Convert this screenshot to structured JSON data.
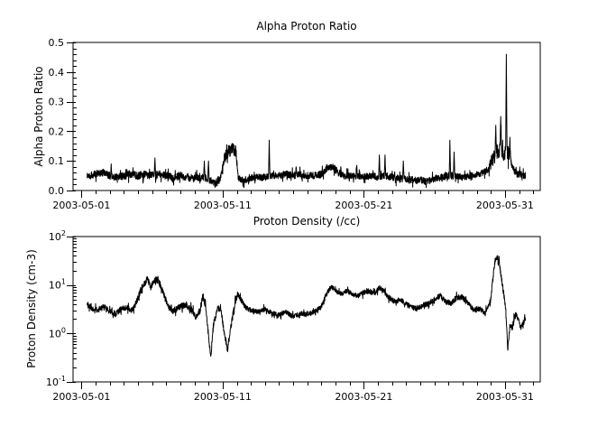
{
  "figure": {
    "background": "#ffffff",
    "line_color": "#000000",
    "text_color": "#000000"
  },
  "chart_data": [
    {
      "type": "line",
      "title": "Alpha Proton Ratio",
      "xlabel": "",
      "ylabel": "Alpha Proton Ratio",
      "scale": "linear",
      "ylim": [
        0.0,
        0.5
      ],
      "xlim_days": [
        -0.6,
        32.5
      ],
      "x_epoch": "2003-05-01",
      "grid": false,
      "x_ticks": [
        {
          "day": 0,
          "label": "2003-05-01"
        },
        {
          "day": 10,
          "label": "2003-05-11"
        },
        {
          "day": 20,
          "label": "2003-05-21"
        },
        {
          "day": 30,
          "label": "2003-05-31"
        }
      ],
      "x_minor_step_days": 1,
      "y_ticks": [
        {
          "v": 0.0,
          "label": "0.0"
        },
        {
          "v": 0.1,
          "label": "0.1"
        },
        {
          "v": 0.2,
          "label": "0.2"
        },
        {
          "v": 0.3,
          "label": "0.3"
        },
        {
          "v": 0.4,
          "label": "0.4"
        },
        {
          "v": 0.5,
          "label": "0.5"
        }
      ],
      "y_minor_step": 0.02,
      "data_day_range": [
        0.4,
        31.45
      ],
      "series_anchors": [
        [
          0.4,
          0.05
        ],
        [
          1.0,
          0.055
        ],
        [
          1.5,
          0.06
        ],
        [
          2.0,
          0.05
        ],
        [
          2.5,
          0.045
        ],
        [
          3.0,
          0.05
        ],
        [
          3.5,
          0.055
        ],
        [
          4.0,
          0.05
        ],
        [
          4.5,
          0.055
        ],
        [
          5.0,
          0.05
        ],
        [
          5.5,
          0.055
        ],
        [
          6.0,
          0.05
        ],
        [
          6.5,
          0.045
        ],
        [
          7.0,
          0.05
        ],
        [
          7.5,
          0.045
        ],
        [
          8.0,
          0.04
        ],
        [
          8.5,
          0.045
        ],
        [
          9.0,
          0.04
        ],
        [
          9.3,
          0.03
        ],
        [
          9.6,
          0.03
        ],
        [
          9.9,
          0.05
        ],
        [
          10.1,
          0.11
        ],
        [
          10.4,
          0.13
        ],
        [
          10.7,
          0.14
        ],
        [
          10.95,
          0.13
        ],
        [
          11.1,
          0.04
        ],
        [
          11.5,
          0.035
        ],
        [
          12.0,
          0.04
        ],
        [
          12.5,
          0.045
        ],
        [
          13.0,
          0.045
        ],
        [
          13.5,
          0.05
        ],
        [
          14.0,
          0.05
        ],
        [
          14.5,
          0.055
        ],
        [
          15.0,
          0.05
        ],
        [
          15.5,
          0.055
        ],
        [
          16.0,
          0.05
        ],
        [
          16.5,
          0.05
        ],
        [
          17.0,
          0.055
        ],
        [
          17.4,
          0.075
        ],
        [
          17.8,
          0.08
        ],
        [
          18.2,
          0.06
        ],
        [
          18.6,
          0.05
        ],
        [
          19.0,
          0.05
        ],
        [
          19.5,
          0.05
        ],
        [
          20.0,
          0.045
        ],
        [
          20.5,
          0.05
        ],
        [
          21.0,
          0.045
        ],
        [
          21.5,
          0.05
        ],
        [
          22.0,
          0.045
        ],
        [
          22.5,
          0.04
        ],
        [
          23.0,
          0.04
        ],
        [
          23.5,
          0.035
        ],
        [
          24.0,
          0.035
        ],
        [
          24.5,
          0.03
        ],
        [
          25.0,
          0.04
        ],
        [
          25.5,
          0.045
        ],
        [
          26.0,
          0.05
        ],
        [
          26.5,
          0.05
        ],
        [
          27.0,
          0.045
        ],
        [
          27.5,
          0.05
        ],
        [
          28.0,
          0.055
        ],
        [
          28.4,
          0.06
        ],
        [
          28.8,
          0.07
        ],
        [
          29.1,
          0.1
        ],
        [
          29.4,
          0.13
        ],
        [
          29.7,
          0.14
        ],
        [
          30.0,
          0.12
        ],
        [
          30.2,
          0.13
        ],
        [
          30.45,
          0.09
        ],
        [
          30.6,
          0.07
        ],
        [
          30.9,
          0.055
        ],
        [
          31.45,
          0.05
        ]
      ],
      "spikes": [
        [
          2.1,
          0.09
        ],
        [
          5.2,
          0.11
        ],
        [
          8.7,
          0.1
        ],
        [
          9.0,
          0.1
        ],
        [
          13.3,
          0.17
        ],
        [
          15.2,
          0.08
        ],
        [
          19.5,
          0.085
        ],
        [
          21.1,
          0.12
        ],
        [
          21.5,
          0.12
        ],
        [
          22.8,
          0.1
        ],
        [
          26.1,
          0.17
        ],
        [
          26.4,
          0.13
        ],
        [
          29.35,
          0.22
        ],
        [
          29.7,
          0.25
        ],
        [
          30.1,
          0.46
        ],
        [
          30.35,
          0.18
        ]
      ],
      "noise_anchors": [
        [
          0,
          0.013
        ],
        [
          9.9,
          0.013
        ],
        [
          10.2,
          0.02
        ],
        [
          11.0,
          0.02
        ],
        [
          11.2,
          0.012
        ],
        [
          28.8,
          0.012
        ],
        [
          29.0,
          0.025
        ],
        [
          30.3,
          0.025
        ],
        [
          30.5,
          0.012
        ],
        [
          32,
          0.012
        ]
      ],
      "clamp": [
        0.01,
        0.5
      ]
    },
    {
      "type": "line",
      "title": "Proton Density (/cc)",
      "xlabel": "",
      "ylabel": "Proton Density (cm-3)",
      "scale": "log",
      "ylim": [
        0.1,
        100
      ],
      "xlim_days": [
        -0.6,
        32.5
      ],
      "x_epoch": "2003-05-01",
      "grid": false,
      "x_ticks": [
        {
          "day": 0,
          "label": "2003-05-01"
        },
        {
          "day": 10,
          "label": "2003-05-11"
        },
        {
          "day": 20,
          "label": "2003-05-21"
        },
        {
          "day": 30,
          "label": "2003-05-31"
        }
      ],
      "x_minor_step_days": 1,
      "y_ticks": [
        {
          "v": 0.1,
          "mantissa": "10",
          "exp": "-1"
        },
        {
          "v": 1,
          "mantissa": "10",
          "exp": "0"
        },
        {
          "v": 10,
          "mantissa": "10",
          "exp": "1"
        },
        {
          "v": 100,
          "mantissa": "10",
          "exp": "2"
        }
      ],
      "data_day_range": [
        0.4,
        31.45
      ],
      "series_anchors": [
        [
          0.4,
          4.0
        ],
        [
          0.8,
          3.2
        ],
        [
          1.2,
          3.0
        ],
        [
          1.6,
          3.6
        ],
        [
          2.0,
          3.0
        ],
        [
          2.4,
          2.5
        ],
        [
          2.8,
          3.2
        ],
        [
          3.2,
          3.5
        ],
        [
          3.6,
          3.0
        ],
        [
          3.9,
          4.5
        ],
        [
          4.2,
          8.0
        ],
        [
          4.5,
          11.0
        ],
        [
          4.65,
          14.0
        ],
        [
          4.9,
          9.0
        ],
        [
          5.1,
          12.0
        ],
        [
          5.3,
          13.0
        ],
        [
          5.6,
          10.0
        ],
        [
          5.9,
          5.5
        ],
        [
          6.2,
          3.5
        ],
        [
          6.6,
          3.0
        ],
        [
          7.0,
          3.5
        ],
        [
          7.4,
          4.0
        ],
        [
          7.8,
          3.0
        ],
        [
          8.1,
          2.2
        ],
        [
          8.4,
          3.0
        ],
        [
          8.6,
          6.0
        ],
        [
          8.8,
          3.5
        ],
        [
          9.0,
          0.9
        ],
        [
          9.15,
          0.33
        ],
        [
          9.35,
          1.5
        ],
        [
          9.6,
          3.0
        ],
        [
          9.85,
          3.5
        ],
        [
          10.1,
          1.1
        ],
        [
          10.35,
          0.45
        ],
        [
          10.6,
          1.5
        ],
        [
          10.85,
          4.0
        ],
        [
          11.05,
          6.5
        ],
        [
          11.3,
          5.0
        ],
        [
          11.6,
          3.5
        ],
        [
          12.0,
          3.0
        ],
        [
          12.5,
          2.8
        ],
        [
          13.0,
          3.2
        ],
        [
          13.5,
          2.6
        ],
        [
          14.0,
          2.4
        ],
        [
          14.5,
          2.8
        ],
        [
          15.0,
          2.2
        ],
        [
          15.5,
          2.6
        ],
        [
          16.0,
          2.5
        ],
        [
          16.5,
          2.8
        ],
        [
          17.0,
          3.5
        ],
        [
          17.3,
          6.0
        ],
        [
          17.7,
          9.5
        ],
        [
          18.0,
          7.5
        ],
        [
          18.4,
          6.5
        ],
        [
          18.8,
          7.5
        ],
        [
          19.2,
          6.5
        ],
        [
          19.6,
          6.0
        ],
        [
          20.0,
          7.0
        ],
        [
          20.4,
          7.5
        ],
        [
          20.8,
          6.5
        ],
        [
          21.1,
          9.0
        ],
        [
          21.4,
          7.5
        ],
        [
          21.8,
          5.5
        ],
        [
          22.2,
          4.5
        ],
        [
          22.6,
          5.0
        ],
        [
          23.0,
          4.0
        ],
        [
          23.4,
          3.5
        ],
        [
          23.8,
          3.2
        ],
        [
          24.2,
          3.8
        ],
        [
          24.6,
          4.2
        ],
        [
          25.0,
          5.0
        ],
        [
          25.4,
          6.0
        ],
        [
          25.8,
          4.5
        ],
        [
          26.2,
          4.2
        ],
        [
          26.6,
          5.5
        ],
        [
          27.0,
          5.5
        ],
        [
          27.4,
          4.0
        ],
        [
          27.8,
          3.0
        ],
        [
          28.2,
          3.3
        ],
        [
          28.6,
          2.6
        ],
        [
          29.0,
          5.0
        ],
        [
          29.15,
          14.0
        ],
        [
          29.3,
          32.0
        ],
        [
          29.45,
          40.0
        ],
        [
          29.6,
          28.0
        ],
        [
          29.75,
          14.0
        ],
        [
          29.9,
          7.0
        ],
        [
          30.05,
          3.2
        ],
        [
          30.2,
          0.45
        ],
        [
          30.35,
          1.5
        ],
        [
          30.5,
          1.3
        ],
        [
          30.65,
          2.0
        ],
        [
          30.8,
          2.4
        ],
        [
          30.95,
          2.0
        ],
        [
          31.1,
          1.3
        ],
        [
          31.25,
          1.6
        ],
        [
          31.45,
          1.9
        ]
      ],
      "spikes": [],
      "noise_anchors": [
        [
          0,
          0.055
        ],
        [
          8.0,
          0.07
        ],
        [
          11.0,
          0.07
        ],
        [
          11.5,
          0.05
        ],
        [
          17.0,
          0.05
        ],
        [
          29.0,
          0.06
        ],
        [
          31.5,
          0.06
        ]
      ],
      "clamp": [
        0.11,
        99.0
      ]
    }
  ]
}
